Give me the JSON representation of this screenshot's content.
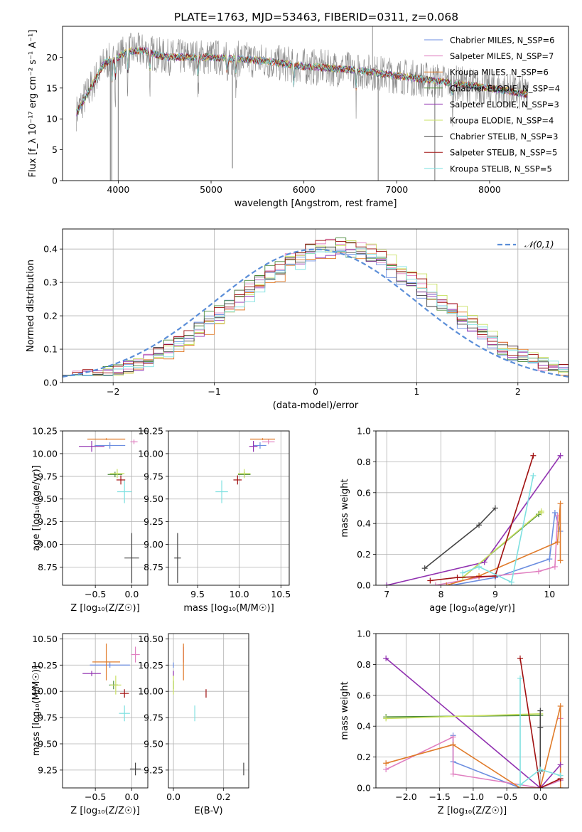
{
  "title": "PLATE=1763, MJD=53463, FIBERID=0311, z=0.068",
  "colors": {
    "chabrier_miles": "#6c8ee0",
    "salpeter_miles": "#e07fc0",
    "kroupa_miles": "#e07b2a",
    "chabrier_elodie": "#4a8a3a",
    "salpeter_elodie": "#9030b0",
    "kroupa_elodie": "#c8e060",
    "chabrier_stelib": "#444444",
    "salpeter_stelib": "#a01010",
    "kroupa_stelib": "#7ee0e0",
    "data": "#888888",
    "gaussian": "#5b8ed8"
  },
  "chart_data": [
    {
      "type": "line",
      "xlabel": "wavelength [Angstrom, rest frame]",
      "ylabel": "Flux [f_λ 10⁻¹⁷ erg cm⁻² s⁻¹ A⁻¹]",
      "xlim": [
        3400,
        8850
      ],
      "ylim": [
        0,
        25
      ],
      "xticks": [
        "4000",
        "5000",
        "6000",
        "7000",
        "8000"
      ],
      "yticks": [
        "0",
        "5",
        "10",
        "15",
        "20"
      ],
      "legend_position": "top-right",
      "series": [
        {
          "name": "Chabrier MILES, N_SSP=6"
        },
        {
          "name": "Salpeter MILES, N_SSP=7"
        },
        {
          "name": "Kroupa MILES, N_SSP=6"
        },
        {
          "name": "Chabrier ELODIE, N_SSP=4"
        },
        {
          "name": "Salpeter ELODIE, N_SSP=3"
        },
        {
          "name": "Kroupa ELODIE, N_SSP=4"
        },
        {
          "name": "Chabrier STELIB, N_SSP=3"
        },
        {
          "name": "Salpeter STELIB, N_SSP=5"
        },
        {
          "name": "Kroupa STELIB, N_SSP=5"
        }
      ],
      "continuum": {
        "x": [
          3550,
          3700,
          3850,
          4000,
          4100,
          4300,
          4500,
          5000,
          5500,
          6000,
          6500,
          7000,
          7500,
          8000,
          8400
        ],
        "y": [
          11,
          15,
          19,
          20,
          21,
          21,
          20,
          20,
          19.5,
          18.5,
          18,
          17,
          16,
          15,
          14
        ]
      }
    },
    {
      "type": "line",
      "xlabel": "(data-model)/error",
      "ylabel": "Normed distribution",
      "xlim": [
        -2.5,
        2.5
      ],
      "ylim": [
        0,
        0.46
      ],
      "xticks": [
        "−2",
        "−1",
        "0",
        "1",
        "2"
      ],
      "yticks": [
        "0.0",
        "0.1",
        "0.2",
        "0.3",
        "0.4"
      ],
      "legend": "𝒩(0,1)",
      "legend_position": "top-right"
    },
    {
      "type": "scatter",
      "xlabel": "Z [log₁₀(Z/Z☉)]",
      "ylabel": "age  [log₁₀(age/yr)]",
      "xlim": [
        -0.95,
        0.22
      ],
      "ylim": [
        8.55,
        10.25
      ],
      "xticks": [
        "−0.5",
        "0.0"
      ],
      "yticks": [
        "8.75",
        "9.00",
        "9.25",
        "9.50",
        "9.75",
        "10.00",
        "10.25"
      ],
      "points": [
        {
          "x": -0.3,
          "y": 10.09,
          "dx": 0.42,
          "dy": 0.07,
          "c": "chabrier_miles"
        },
        {
          "x": 0.03,
          "y": 10.13,
          "dx": 0.1,
          "dy": 0.05,
          "c": "salpeter_miles"
        },
        {
          "x": -0.35,
          "y": 10.16,
          "dx": 0.52,
          "dy": 0.02,
          "c": "kroupa_miles"
        },
        {
          "x": -0.23,
          "y": 9.77,
          "dx": 0.2,
          "dy": 0.06,
          "c": "chabrier_elodie"
        },
        {
          "x": -0.55,
          "y": 10.08,
          "dx": 0.35,
          "dy": 0.12,
          "c": "salpeter_elodie"
        },
        {
          "x": -0.2,
          "y": 9.78,
          "dx": 0.2,
          "dy": 0.1,
          "c": "kroupa_elodie"
        },
        {
          "x": 0.0,
          "y": 8.85,
          "dx": 0.2,
          "dy": 0.55,
          "c": "chabrier_stelib"
        },
        {
          "x": -0.15,
          "y": 9.71,
          "dx": 0.12,
          "dy": 0.1,
          "c": "salpeter_stelib"
        },
        {
          "x": -0.1,
          "y": 9.58,
          "dx": 0.2,
          "dy": 0.25,
          "c": "kroupa_stelib"
        }
      ]
    },
    {
      "type": "scatter",
      "xlabel": "mass [log₁₀(M/M☉)]",
      "ylabel": "",
      "xlim": [
        9.15,
        10.6
      ],
      "ylim": [
        8.55,
        10.25
      ],
      "xticks": [
        "9.5",
        "10.0",
        "10.5"
      ],
      "yticks": [
        "8.75",
        "9.00",
        "9.25",
        "9.50",
        "9.75",
        "10.00",
        "10.25"
      ],
      "points": [
        {
          "x": 10.25,
          "y": 10.09,
          "dx": 0.15,
          "dy": 0.07,
          "c": "chabrier_miles"
        },
        {
          "x": 10.35,
          "y": 10.13,
          "dx": 0.15,
          "dy": 0.05,
          "c": "salpeter_miles"
        },
        {
          "x": 10.28,
          "y": 10.16,
          "dx": 0.3,
          "dy": 0.02,
          "c": "kroupa_miles"
        },
        {
          "x": 10.06,
          "y": 9.77,
          "dx": 0.15,
          "dy": 0.06,
          "c": "chabrier_elodie"
        },
        {
          "x": 10.17,
          "y": 10.08,
          "dx": 0.1,
          "dy": 0.12,
          "c": "salpeter_elodie"
        },
        {
          "x": 10.06,
          "y": 9.78,
          "dx": 0.15,
          "dy": 0.1,
          "c": "kroupa_elodie"
        },
        {
          "x": 9.26,
          "y": 8.85,
          "dx": 0.08,
          "dy": 0.55,
          "c": "chabrier_stelib"
        },
        {
          "x": 9.98,
          "y": 9.71,
          "dx": 0.1,
          "dy": 0.1,
          "c": "salpeter_stelib"
        },
        {
          "x": 9.79,
          "y": 9.58,
          "dx": 0.15,
          "dy": 0.25,
          "c": "kroupa_stelib"
        }
      ]
    },
    {
      "type": "line",
      "xlabel": "age  [log₁₀(age/yr)]",
      "ylabel": "mass weight",
      "xlim": [
        6.8,
        10.35
      ],
      "ylim": [
        0,
        1
      ],
      "xticks": [
        "7",
        "8",
        "9",
        "10"
      ],
      "yticks": [
        "0.0",
        "0.2",
        "0.4",
        "0.6",
        "0.8",
        "1.0"
      ],
      "series": [
        {
          "c": "chabrier_miles",
          "x": [
            8.2,
            9.0,
            10.0,
            10.1,
            10.2
          ],
          "y": [
            0.0,
            0.05,
            0.17,
            0.47,
            0.35
          ]
        },
        {
          "c": "salpeter_miles",
          "x": [
            7.9,
            8.7,
            9.8,
            10.1,
            10.15
          ],
          "y": [
            0.0,
            0.05,
            0.09,
            0.12,
            0.45
          ]
        },
        {
          "c": "kroupa_miles",
          "x": [
            8.1,
            8.7,
            10.15,
            10.2,
            10.2
          ],
          "y": [
            0.0,
            0.06,
            0.28,
            0.53,
            0.16
          ]
        },
        {
          "c": "chabrier_elodie",
          "x": [
            8.4,
            9.8,
            9.8
          ],
          "y": [
            0.05,
            0.46,
            0.46
          ]
        },
        {
          "c": "salpeter_elodie",
          "x": [
            7.0,
            8.8,
            10.2
          ],
          "y": [
            0.0,
            0.15,
            0.84
          ]
        },
        {
          "c": "kroupa_elodie",
          "x": [
            8.4,
            9.85,
            9.85
          ],
          "y": [
            0.05,
            0.48,
            0.47
          ]
        },
        {
          "c": "chabrier_stelib",
          "x": [
            7.7,
            8.7,
            9.0
          ],
          "y": [
            0.11,
            0.39,
            0.5
          ]
        },
        {
          "c": "salpeter_stelib",
          "x": [
            7.8,
            8.3,
            9.0,
            9.7
          ],
          "y": [
            0.03,
            0.05,
            0.06,
            0.84
          ]
        },
        {
          "c": "kroupa_stelib",
          "x": [
            8.4,
            8.7,
            9.3,
            9.7
          ],
          "y": [
            0.08,
            0.12,
            0.02,
            0.71
          ]
        }
      ]
    },
    {
      "type": "scatter",
      "xlabel": "Z [log₁₀(Z/Z☉)]",
      "ylabel": "mass [log₁₀(M/M☉)]",
      "xlim": [
        -0.95,
        0.22
      ],
      "ylim": [
        9.08,
        10.55
      ],
      "xticks": [
        "−0.5",
        "0.0"
      ],
      "yticks": [
        "9.25",
        "9.50",
        "9.75",
        "10.00",
        "10.25",
        "10.50"
      ],
      "points": [
        {
          "x": -0.3,
          "y": 10.25,
          "dx": 0.55,
          "dy": 0.05,
          "c": "chabrier_miles"
        },
        {
          "x": 0.05,
          "y": 10.35,
          "dx": 0.12,
          "dy": 0.15,
          "c": "salpeter_miles"
        },
        {
          "x": -0.35,
          "y": 10.28,
          "dx": 0.38,
          "dy": 0.35,
          "c": "kroupa_miles"
        },
        {
          "x": -0.25,
          "y": 10.06,
          "dx": 0.12,
          "dy": 0.08,
          "c": "chabrier_elodie"
        },
        {
          "x": -0.55,
          "y": 10.17,
          "dx": 0.25,
          "dy": 0.05,
          "c": "salpeter_elodie"
        },
        {
          "x": -0.22,
          "y": 10.06,
          "dx": 0.15,
          "dy": 0.18,
          "c": "kroupa_elodie"
        },
        {
          "x": 0.05,
          "y": 9.26,
          "dx": 0.15,
          "dy": 0.12,
          "c": "chabrier_stelib"
        },
        {
          "x": -0.1,
          "y": 9.98,
          "dx": 0.12,
          "dy": 0.08,
          "c": "salpeter_stelib"
        },
        {
          "x": -0.1,
          "y": 9.79,
          "dx": 0.15,
          "dy": 0.15,
          "c": "kroupa_stelib"
        }
      ]
    },
    {
      "type": "scatter",
      "xlabel": "E(B-V)",
      "ylabel": "",
      "xlim": [
        -0.02,
        0.3
      ],
      "ylim": [
        9.08,
        10.55
      ],
      "xticks": [
        "0.0",
        "0.2"
      ],
      "yticks": [
        "9.25",
        "9.50",
        "9.75",
        "10.00",
        "10.25",
        "10.50"
      ],
      "points": [
        {
          "x": 0.0,
          "y": 10.25,
          "dx": 0,
          "dy": 0.05,
          "c": "chabrier_miles"
        },
        {
          "x": 0.04,
          "y": 10.35,
          "dx": 0,
          "dy": 0.15,
          "c": "salpeter_miles"
        },
        {
          "x": 0.04,
          "y": 10.28,
          "dx": 0,
          "dy": 0.35,
          "c": "kroupa_miles"
        },
        {
          "x": 0.0,
          "y": 10.06,
          "dx": 0,
          "dy": 0.08,
          "c": "chabrier_elodie"
        },
        {
          "x": 0.0,
          "y": 10.17,
          "dx": 0,
          "dy": 0.05,
          "c": "salpeter_elodie"
        },
        {
          "x": 0.0,
          "y": 10.06,
          "dx": 0,
          "dy": 0.18,
          "c": "kroupa_elodie"
        },
        {
          "x": 0.28,
          "y": 9.26,
          "dx": 0,
          "dy": 0.12,
          "c": "chabrier_stelib"
        },
        {
          "x": 0.13,
          "y": 9.98,
          "dx": 0,
          "dy": 0.08,
          "c": "salpeter_stelib"
        },
        {
          "x": 0.085,
          "y": 9.79,
          "dx": 0,
          "dy": 0.15,
          "c": "kroupa_stelib"
        }
      ]
    },
    {
      "type": "line",
      "xlabel": "Z [log₁₀(Z/Z☉)]",
      "ylabel": "mass weight",
      "xlim": [
        -2.45,
        0.42
      ],
      "ylim": [
        0,
        1
      ],
      "xticks": [
        "−2.0",
        "−1.5",
        "−1.0",
        "−0.5",
        "0.0"
      ],
      "yticks": [
        "0.0",
        "0.2",
        "0.4",
        "0.6",
        "0.8",
        "1.0"
      ],
      "series": [
        {
          "c": "chabrier_miles",
          "x": [
            -1.3,
            -1.3,
            -0.3,
            0.0,
            0.3
          ],
          "y": [
            0.34,
            0.17,
            0.0,
            0.0,
            0.05
          ]
        },
        {
          "c": "salpeter_miles",
          "x": [
            -2.3,
            -1.3,
            -1.3,
            0.0,
            0.3,
            0.3
          ],
          "y": [
            0.12,
            0.33,
            0.09,
            0.0,
            0.05,
            0.45
          ]
        },
        {
          "c": "kroupa_miles",
          "x": [
            -2.3,
            -1.3,
            -0.3,
            0.0,
            0.3,
            0.3
          ],
          "y": [
            0.16,
            0.28,
            0.0,
            0.0,
            0.53,
            0.0
          ]
        },
        {
          "c": "chabrier_elodie",
          "x": [
            -2.3,
            0.0
          ],
          "y": [
            0.46,
            0.47
          ]
        },
        {
          "c": "salpeter_elodie",
          "x": [
            -2.3,
            0.0,
            0.3
          ],
          "y": [
            0.84,
            0.0,
            0.15
          ]
        },
        {
          "c": "kroupa_elodie",
          "x": [
            -2.3,
            0.0
          ],
          "y": [
            0.45,
            0.48
          ]
        },
        {
          "c": "chabrier_stelib",
          "x": [
            0.0,
            0.0,
            0.0
          ],
          "y": [
            0.5,
            0.39,
            0.11
          ]
        },
        {
          "c": "salpeter_stelib",
          "x": [
            -0.3,
            0.0,
            0.3
          ],
          "y": [
            0.84,
            0.0,
            0.06
          ]
        },
        {
          "c": "kroupa_stelib",
          "x": [
            -0.3,
            -0.3,
            0.0,
            0.3
          ],
          "y": [
            0.71,
            0.02,
            0.12,
            0.08
          ]
        }
      ]
    }
  ]
}
